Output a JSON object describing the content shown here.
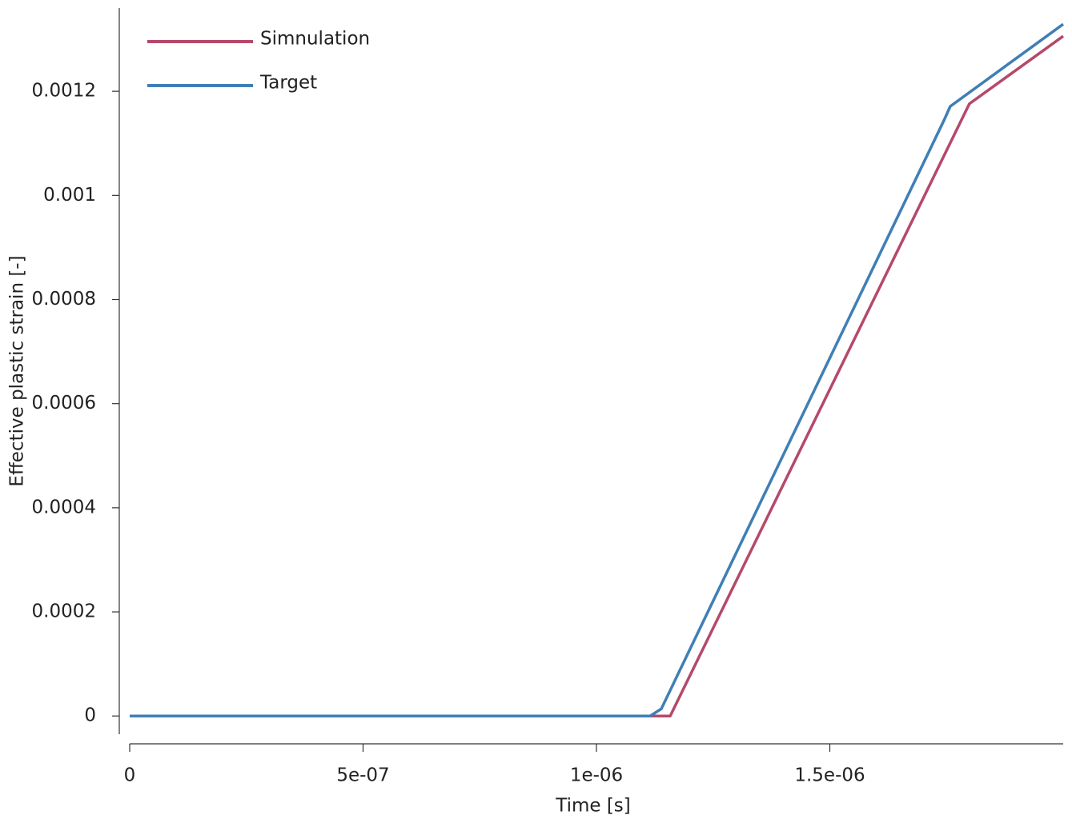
{
  "chart_data": {
    "type": "line",
    "xlabel": "Time [s]",
    "ylabel": "Effective plastic strain [-]",
    "xlim": [
      0,
      2e-06
    ],
    "ylim": [
      -3.5e-05,
      0.00136
    ],
    "xticks": [
      0,
      {
        "value": 5e-07,
        "label": "5e-07"
      },
      {
        "value": 1e-06,
        "label": "1e-06"
      },
      {
        "value": 1.5e-06,
        "label": "1.5e-06"
      }
    ],
    "yticks": [
      0,
      0.0002,
      0.0004,
      0.0006,
      0.0008,
      0.001,
      0.0012
    ],
    "legend": "upper left",
    "series": [
      {
        "name": "Simnulation",
        "color": "#b5496a",
        "x": [
          0,
          1.158e-06,
          1.799e-06,
          2e-06
        ],
        "values": [
          0,
          0,
          0.001176,
          0.001306
        ]
      },
      {
        "name": "Target",
        "color": "#3f7fb5",
        "x": [
          0,
          1.115e-06,
          1.139e-06,
          1.745e-06,
          1.758e-06,
          2e-06
        ],
        "values": [
          0,
          0,
          1.38e-05,
          0.001145,
          0.001171,
          0.001329
        ]
      }
    ]
  }
}
